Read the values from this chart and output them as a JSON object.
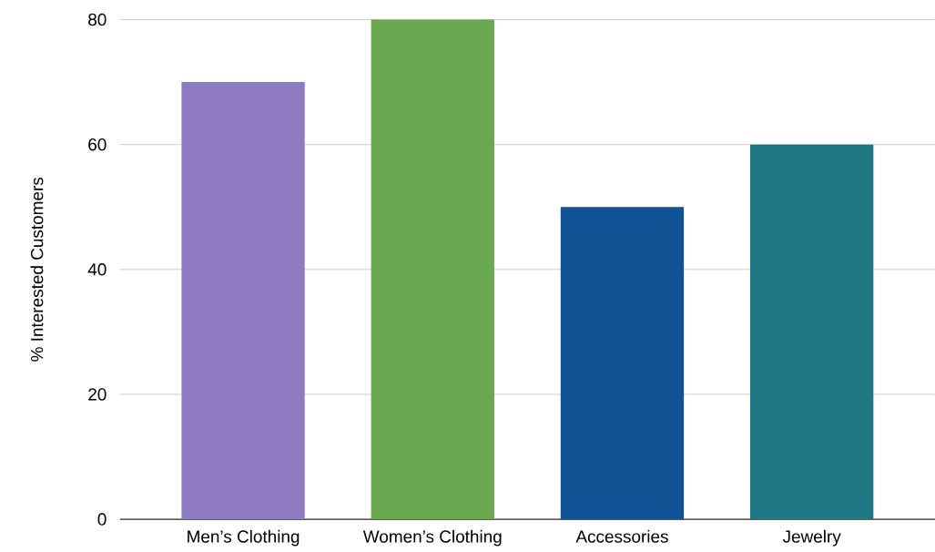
{
  "chart_data": {
    "type": "bar",
    "ylabel": "% Interested Customers",
    "categories": [
      "Men’s Clothing",
      "Women’s Clothing",
      "Accessories",
      "Jewelry"
    ],
    "values": [
      70,
      80,
      50,
      60
    ],
    "colors": [
      "#8e7cc3",
      "#6aa84f",
      "#0f5394",
      "#1f7784"
    ],
    "ylim": [
      0,
      80
    ],
    "yticks": [
      0,
      20,
      40,
      60,
      80
    ],
    "grid": "y"
  }
}
